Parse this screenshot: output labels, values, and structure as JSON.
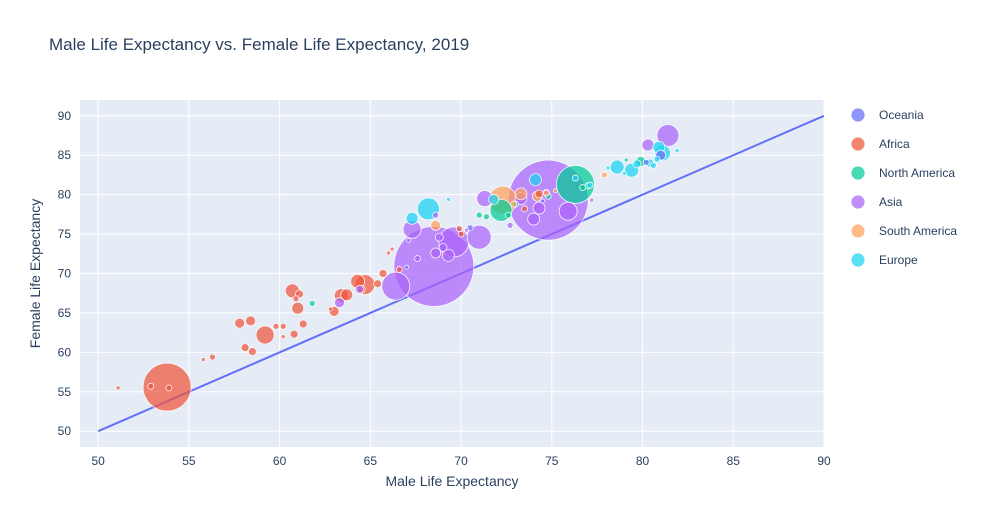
{
  "chart_data": {
    "type": "scatter",
    "title": "Male Life Expectancy vs. Female Life Expectancy, 2019",
    "xlabel": "Male Life Expectancy",
    "ylabel": "Female Life Expectancy",
    "xlim": [
      49,
      90
    ],
    "ylim": [
      48,
      92
    ],
    "xticks": [
      50,
      55,
      60,
      65,
      70,
      75,
      80,
      85,
      90
    ],
    "yticks": [
      50,
      55,
      60,
      65,
      70,
      75,
      80,
      85,
      90
    ],
    "grid": true,
    "legend_position": "right",
    "reference_line": {
      "x": [
        50,
        90
      ],
      "y": [
        50,
        90
      ],
      "color": "#636efa"
    },
    "series": [
      {
        "name": "Oceania",
        "color": "#636efa",
        "points": [
          {
            "x": 81.0,
            "y": 85.0,
            "s": 5
          },
          {
            "x": 80.2,
            "y": 84.1,
            "s": 3
          },
          {
            "x": 70.5,
            "y": 75.8,
            "s": 3
          },
          {
            "x": 74.5,
            "y": 79.2,
            "s": 2
          },
          {
            "x": 67.0,
            "y": 70.8,
            "s": 2
          }
        ]
      },
      {
        "name": "Africa",
        "color": "#ef553b",
        "points": [
          {
            "x": 53.8,
            "y": 55.6,
            "s": 24
          },
          {
            "x": 53.9,
            "y": 55.5,
            "s": 3
          },
          {
            "x": 51.1,
            "y": 55.5,
            "s": 2
          },
          {
            "x": 52.9,
            "y": 55.7,
            "s": 3
          },
          {
            "x": 55.8,
            "y": 59.1,
            "s": 2
          },
          {
            "x": 56.3,
            "y": 59.4,
            "s": 3
          },
          {
            "x": 58.1,
            "y": 60.6,
            "s": 4
          },
          {
            "x": 58.5,
            "y": 60.1,
            "s": 4
          },
          {
            "x": 57.8,
            "y": 63.7,
            "s": 5
          },
          {
            "x": 58.4,
            "y": 64.0,
            "s": 5
          },
          {
            "x": 59.2,
            "y": 62.2,
            "s": 9
          },
          {
            "x": 59.8,
            "y": 63.3,
            "s": 3
          },
          {
            "x": 60.2,
            "y": 63.3,
            "s": 3
          },
          {
            "x": 60.2,
            "y": 62.0,
            "s": 2
          },
          {
            "x": 60.8,
            "y": 62.3,
            "s": 4
          },
          {
            "x": 60.7,
            "y": 67.8,
            "s": 7
          },
          {
            "x": 61.1,
            "y": 67.4,
            "s": 4
          },
          {
            "x": 60.9,
            "y": 66.8,
            "s": 3
          },
          {
            "x": 61.0,
            "y": 65.6,
            "s": 6
          },
          {
            "x": 61.3,
            "y": 63.6,
            "s": 4
          },
          {
            "x": 63.0,
            "y": 65.2,
            "s": 5
          },
          {
            "x": 63.4,
            "y": 67.2,
            "s": 7
          },
          {
            "x": 63.7,
            "y": 67.3,
            "s": 6
          },
          {
            "x": 64.3,
            "y": 69.0,
            "s": 7
          },
          {
            "x": 64.7,
            "y": 68.6,
            "s": 10
          },
          {
            "x": 64.5,
            "y": 68.0,
            "s": 4
          },
          {
            "x": 65.4,
            "y": 68.7,
            "s": 4
          },
          {
            "x": 65.7,
            "y": 70.0,
            "s": 4
          },
          {
            "x": 66.6,
            "y": 70.5,
            "s": 3
          },
          {
            "x": 66.2,
            "y": 73.1,
            "s": 2
          },
          {
            "x": 66.0,
            "y": 72.6,
            "s": 2
          },
          {
            "x": 62.8,
            "y": 65.5,
            "s": 2
          },
          {
            "x": 70.0,
            "y": 75.0,
            "s": 3
          },
          {
            "x": 69.9,
            "y": 75.7,
            "s": 3
          },
          {
            "x": 73.5,
            "y": 78.2,
            "s": 3
          },
          {
            "x": 74.3,
            "y": 80.1,
            "s": 4
          }
        ]
      },
      {
        "name": "North America",
        "color": "#00cc96",
        "points": [
          {
            "x": 76.3,
            "y": 81.3,
            "s": 19
          },
          {
            "x": 72.2,
            "y": 78.0,
            "s": 11
          },
          {
            "x": 79.9,
            "y": 84.2,
            "s": 5
          },
          {
            "x": 71.0,
            "y": 77.4,
            "s": 3
          },
          {
            "x": 71.4,
            "y": 77.2,
            "s": 3
          },
          {
            "x": 61.8,
            "y": 66.2,
            "s": 3
          },
          {
            "x": 72.6,
            "y": 77.4,
            "s": 3
          },
          {
            "x": 73.0,
            "y": 78.8,
            "s": 3
          },
          {
            "x": 74.8,
            "y": 79.8,
            "s": 3
          },
          {
            "x": 76.7,
            "y": 80.9,
            "s": 3
          },
          {
            "x": 77.0,
            "y": 81.1,
            "s": 3
          },
          {
            "x": 79.1,
            "y": 84.4,
            "s": 2
          }
        ]
      },
      {
        "name": "Asia",
        "color": "#ab63fa",
        "points": [
          {
            "x": 74.8,
            "y": 79.3,
            "s": 40
          },
          {
            "x": 68.5,
            "y": 70.9,
            "s": 40
          },
          {
            "x": 69.6,
            "y": 74.0,
            "s": 15
          },
          {
            "x": 66.4,
            "y": 68.4,
            "s": 14
          },
          {
            "x": 71.0,
            "y": 74.6,
            "s": 12
          },
          {
            "x": 81.4,
            "y": 87.5,
            "s": 11
          },
          {
            "x": 75.9,
            "y": 77.9,
            "s": 9
          },
          {
            "x": 67.3,
            "y": 75.6,
            "s": 9
          },
          {
            "x": 71.3,
            "y": 79.5,
            "s": 8
          },
          {
            "x": 73.3,
            "y": 79.5,
            "s": 6
          },
          {
            "x": 80.3,
            "y": 86.3,
            "s": 6
          },
          {
            "x": 69.3,
            "y": 72.3,
            "s": 6
          },
          {
            "x": 74.0,
            "y": 76.9,
            "s": 6
          },
          {
            "x": 74.3,
            "y": 78.3,
            "s": 6
          },
          {
            "x": 68.6,
            "y": 72.6,
            "s": 5
          },
          {
            "x": 63.3,
            "y": 66.3,
            "s": 5
          },
          {
            "x": 68.8,
            "y": 74.6,
            "s": 4
          },
          {
            "x": 64.4,
            "y": 68.0,
            "s": 4
          },
          {
            "x": 69.0,
            "y": 73.3,
            "s": 4
          },
          {
            "x": 68.6,
            "y": 77.4,
            "s": 3
          },
          {
            "x": 67.6,
            "y": 71.9,
            "s": 3
          },
          {
            "x": 72.7,
            "y": 76.1,
            "s": 3
          },
          {
            "x": 74.7,
            "y": 80.3,
            "s": 3
          },
          {
            "x": 77.2,
            "y": 79.3,
            "s": 2
          },
          {
            "x": 67.1,
            "y": 74.2,
            "s": 2
          },
          {
            "x": 70.3,
            "y": 75.5,
            "s": 2
          }
        ]
      },
      {
        "name": "South America",
        "color": "#ffa15a",
        "points": [
          {
            "x": 72.3,
            "y": 79.3,
            "s": 14
          },
          {
            "x": 73.3,
            "y": 80.1,
            "s": 6
          },
          {
            "x": 74.2,
            "y": 79.8,
            "s": 5
          },
          {
            "x": 77.9,
            "y": 82.5,
            "s": 3
          },
          {
            "x": 68.6,
            "y": 76.1,
            "s": 5
          },
          {
            "x": 74.7,
            "y": 80.2,
            "s": 3
          },
          {
            "x": 75.2,
            "y": 80.5,
            "s": 2
          },
          {
            "x": 72.9,
            "y": 78.8,
            "s": 3
          }
        ]
      },
      {
        "name": "Europe",
        "color": "#19d3f3",
        "points": [
          {
            "x": 68.2,
            "y": 78.2,
            "s": 11
          },
          {
            "x": 74.1,
            "y": 81.9,
            "s": 6
          },
          {
            "x": 79.4,
            "y": 83.1,
            "s": 7
          },
          {
            "x": 78.6,
            "y": 83.5,
            "s": 7
          },
          {
            "x": 81.1,
            "y": 85.3,
            "s": 8
          },
          {
            "x": 80.9,
            "y": 86.0,
            "s": 6
          },
          {
            "x": 79.7,
            "y": 83.9,
            "s": 4
          },
          {
            "x": 80.4,
            "y": 84.0,
            "s": 4
          },
          {
            "x": 67.3,
            "y": 77.0,
            "s": 6
          },
          {
            "x": 71.8,
            "y": 79.4,
            "s": 5
          },
          {
            "x": 69.3,
            "y": 79.4,
            "s": 2
          },
          {
            "x": 76.3,
            "y": 82.1,
            "s": 3
          },
          {
            "x": 77.1,
            "y": 81.2,
            "s": 3
          },
          {
            "x": 80.8,
            "y": 84.5,
            "s": 3
          },
          {
            "x": 81.9,
            "y": 85.6,
            "s": 2
          },
          {
            "x": 80.6,
            "y": 83.7,
            "s": 3
          },
          {
            "x": 79.0,
            "y": 82.7,
            "s": 2
          },
          {
            "x": 78.1,
            "y": 83.4,
            "s": 2
          }
        ]
      }
    ]
  }
}
